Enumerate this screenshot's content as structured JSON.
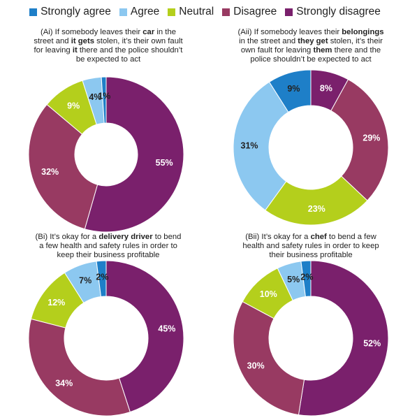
{
  "colors": {
    "strongly_agree": "#1e7fc8",
    "agree": "#8cc8f0",
    "neutral": "#b4cf1c",
    "disagree": "#983a62",
    "strongly_disagree": "#7a206c"
  },
  "legend": [
    {
      "label": "Strongly agree",
      "color": "#1e7fc8"
    },
    {
      "label": "Agree",
      "color": "#8cc8f0"
    },
    {
      "label": "Neutral",
      "color": "#b4cf1c"
    },
    {
      "label": "Disagree",
      "color": "#983a62"
    },
    {
      "label": "Strongly disagree",
      "color": "#7a206c"
    }
  ],
  "chart_data": [
    {
      "type": "pie",
      "title_lines": [
        [
          {
            "t": "(Ai) If somebody leaves their "
          },
          {
            "t": "car",
            "b": true
          },
          {
            "t": " in the"
          }
        ],
        [
          {
            "t": "street and "
          },
          {
            "t": "it gets",
            "b": true
          },
          {
            "t": " stolen, it’s their own fault"
          }
        ],
        [
          {
            "t": "for leaving "
          },
          {
            "t": "it",
            "b": true
          },
          {
            "t": " there and the police shouldn’t"
          }
        ],
        [
          {
            "t": "be expected to act"
          }
        ]
      ],
      "categories": [
        "Strongly agree",
        "Agree",
        "Neutral",
        "Disagree",
        "Strongly disagree"
      ],
      "values": [
        1,
        4,
        9,
        32,
        55
      ],
      "labels": [
        "1%",
        "4%",
        "9%",
        "32%",
        "55%"
      ]
    },
    {
      "type": "pie",
      "title_lines": [
        [
          {
            "t": "(Aii) If somebody leaves their "
          },
          {
            "t": "belongings",
            "b": true
          }
        ],
        [
          {
            "t": "in the street and "
          },
          {
            "t": "they get",
            "b": true
          },
          {
            "t": " stolen, it’s their"
          }
        ],
        [
          {
            "t": "own fault for leaving "
          },
          {
            "t": "them",
            "b": true
          },
          {
            "t": " there and the"
          }
        ],
        [
          {
            "t": "police shouldn’t be expected to act"
          }
        ]
      ],
      "categories": [
        "Strongly agree",
        "Agree",
        "Neutral",
        "Disagree",
        "Strongly disagree"
      ],
      "values": [
        9,
        31,
        23,
        29,
        8
      ],
      "labels": [
        "9%",
        "31%",
        "23%",
        "29%",
        "8%"
      ]
    },
    {
      "type": "pie",
      "title_lines": [
        [
          {
            "t": "(Bi) It’s okay for a "
          },
          {
            "t": "delivery driver",
            "b": true
          },
          {
            "t": " to bend"
          }
        ],
        [
          {
            "t": "a few health and safety rules in order to"
          }
        ],
        [
          {
            "t": "keep their business profitable"
          }
        ]
      ],
      "categories": [
        "Strongly agree",
        "Agree",
        "Neutral",
        "Disagree",
        "Strongly disagree"
      ],
      "values": [
        2,
        7,
        12,
        34,
        45
      ],
      "labels": [
        "2%",
        "7%",
        "12%",
        "34%",
        "45%"
      ]
    },
    {
      "type": "pie",
      "title_lines": [
        [
          {
            "t": "(Bii) It’s okay for a "
          },
          {
            "t": "chef",
            "b": true
          },
          {
            "t": " to bend a few"
          }
        ],
        [
          {
            "t": "health and safety rules in order to keep"
          }
        ],
        [
          {
            "t": "their business profitable"
          }
        ]
      ],
      "categories": [
        "Strongly agree",
        "Agree",
        "Neutral",
        "Disagree",
        "Strongly disagree"
      ],
      "values": [
        2,
        5,
        10,
        30,
        52
      ],
      "labels": [
        "2%",
        "5%",
        "10%",
        "30%",
        "52%"
      ]
    }
  ]
}
